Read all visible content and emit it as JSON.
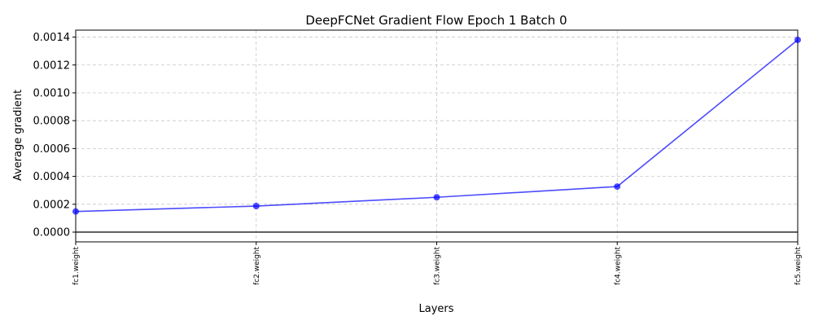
{
  "chart_data": {
    "type": "line",
    "title": "DeepFCNet Gradient Flow Epoch 1 Batch 0",
    "xlabel": "Layers",
    "ylabel": "Average gradient",
    "categories": [
      "fc1.weight",
      "fc2.weight",
      "fc3.weight",
      "fc4.weight",
      "fc5.weight"
    ],
    "series": [
      {
        "values": [
          0.000148,
          0.000187,
          0.00025,
          0.000327,
          0.00138
        ],
        "color": "#0000ff"
      }
    ],
    "ylim": [
      -7e-05,
      0.00145
    ],
    "yticks": [
      0.0,
      0.0002,
      0.0004,
      0.0006,
      0.0008,
      0.001,
      0.0012,
      0.0014
    ],
    "ytick_labels": [
      "0.0000",
      "0.0002",
      "0.0004",
      "0.0006",
      "0.0008",
      "0.0010",
      "0.0012",
      "0.0014"
    ],
    "baseline": 0,
    "grid": true,
    "grid_style": "dashed",
    "legend": "none"
  }
}
